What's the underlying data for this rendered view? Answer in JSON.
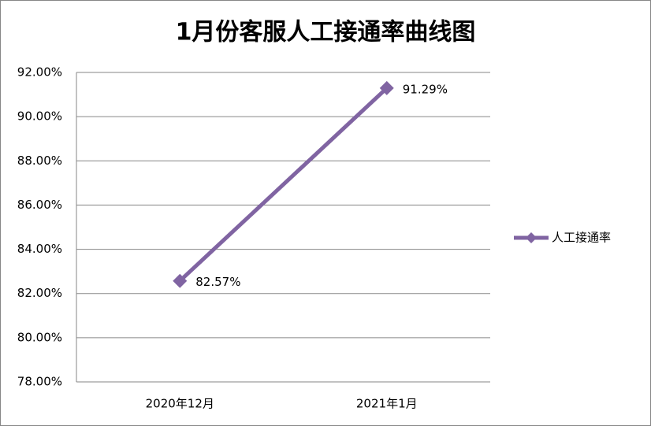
{
  "chart_data": {
    "type": "line",
    "title": "1月份客服人工接通率曲线图",
    "categories": [
      "2020年12月",
      "2021年1月"
    ],
    "series": [
      {
        "name": "人工接通率",
        "color": "#8064a2",
        "values": [
          82.57,
          91.29
        ],
        "value_labels": [
          "82.57%",
          "91.29%"
        ]
      }
    ],
    "ylim": [
      78,
      92
    ],
    "yticks": [
      {
        "value": 78,
        "label": "78.00%"
      },
      {
        "value": 80,
        "label": "80.00%"
      },
      {
        "value": 82,
        "label": "82.00%"
      },
      {
        "value": 84,
        "label": "84.00%"
      },
      {
        "value": 86,
        "label": "86.00%"
      },
      {
        "value": 88,
        "label": "88.00%"
      },
      {
        "value": 90,
        "label": "90.00%"
      },
      {
        "value": 92,
        "label": "92.00%"
      }
    ],
    "grid": true,
    "legend": "right"
  }
}
